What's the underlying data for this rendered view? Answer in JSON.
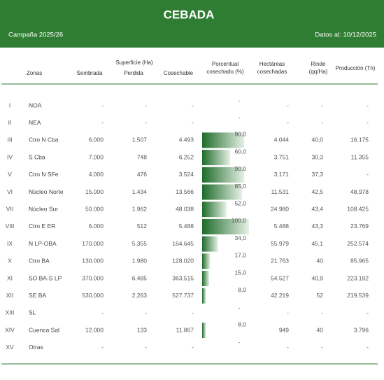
{
  "header": {
    "title": "CEBADA",
    "campaign": "Campaña 2025/26",
    "date": "Datos al: 10/12/2025"
  },
  "table": {
    "columns": {
      "zona": "Zonas",
      "superficie": "Superficie (Ha)",
      "sembrada": "Sembrada",
      "perdida": "Perdida",
      "cosechable": "Cosechable",
      "porcentual": [
        "Porcentual",
        "cosechado (%)"
      ],
      "hectareas": [
        "Hectáreas",
        "cosechadas"
      ],
      "rinde": [
        "Rinde",
        "(qq/Ha)"
      ],
      "produccion": "Producción (Tn)"
    },
    "rows": [
      [
        "I",
        "NOA",
        "-",
        "-",
        "-",
        "-",
        "-",
        "-"
      ],
      [
        "II",
        "NEA",
        "-",
        "-",
        "-",
        "-",
        "-",
        "-"
      ],
      [
        "III",
        "Ctro N Cba",
        "6.000",
        "1.507",
        "4.493",
        "4.044",
        "40,0",
        "16.175"
      ],
      [
        "IV",
        "S Cba",
        "7.000",
        "748",
        "6.252",
        "3.751",
        "30,3",
        "11.355"
      ],
      [
        "V",
        "Ctro N SFe",
        "4.000",
        "476",
        "3.524",
        "3.171",
        "37,3",
        "-"
      ],
      [
        "VI",
        "Núcleo Norte",
        "15.000",
        "1.434",
        "13.566",
        "11.531",
        "42,5",
        "48.978"
      ],
      [
        "VII",
        "Núcleo Sur",
        "50.000",
        "1.962",
        "48.038",
        "24.980",
        "43,4",
        "108.425"
      ],
      [
        "VIII",
        "Ctro E ER",
        "6.000",
        "512",
        "5.488",
        "5.488",
        "43,3",
        "23.769"
      ],
      [
        "IX",
        "N LP-OBA",
        "170.000",
        "5.355",
        "164.645",
        "55.979",
        "45,1",
        "252.574"
      ],
      [
        "X",
        "Ctro BA",
        "130.000",
        "1.980",
        "128.020",
        "21.763",
        "40",
        "85.965"
      ],
      [
        "XI",
        "SO BA-S LP",
        "370.000",
        "6.485",
        "363.515",
        "54.527",
        "40,9",
        "223.192"
      ],
      [
        "XII",
        "SE BA",
        "530.000",
        "2.263",
        "527.737",
        "42.219",
        "52",
        "219.539"
      ],
      [
        "XIII",
        "SL",
        "-",
        "-",
        "-",
        "-",
        "-",
        "-"
      ],
      [
        "XIV",
        "Cuenca Sal",
        "12.000",
        "133",
        "11.867",
        "949",
        "40",
        "3.796"
      ],
      [
        "XV",
        "Otras",
        "-",
        "-",
        "-",
        "-",
        "-",
        "-"
      ]
    ],
    "percent": {
      "values": [
        null,
        null,
        90,
        60,
        90,
        85,
        52,
        100,
        34,
        17,
        15,
        8,
        null,
        8,
        null
      ],
      "value_labels": [
        "-",
        "-",
        "90,0",
        "60,0",
        "90,0",
        "85,0",
        "52,0",
        "100,0",
        "34,0",
        "17,0",
        "15,0",
        "8,0",
        "-",
        "8,0",
        "-"
      ],
      "max": 100
    }
  }
}
